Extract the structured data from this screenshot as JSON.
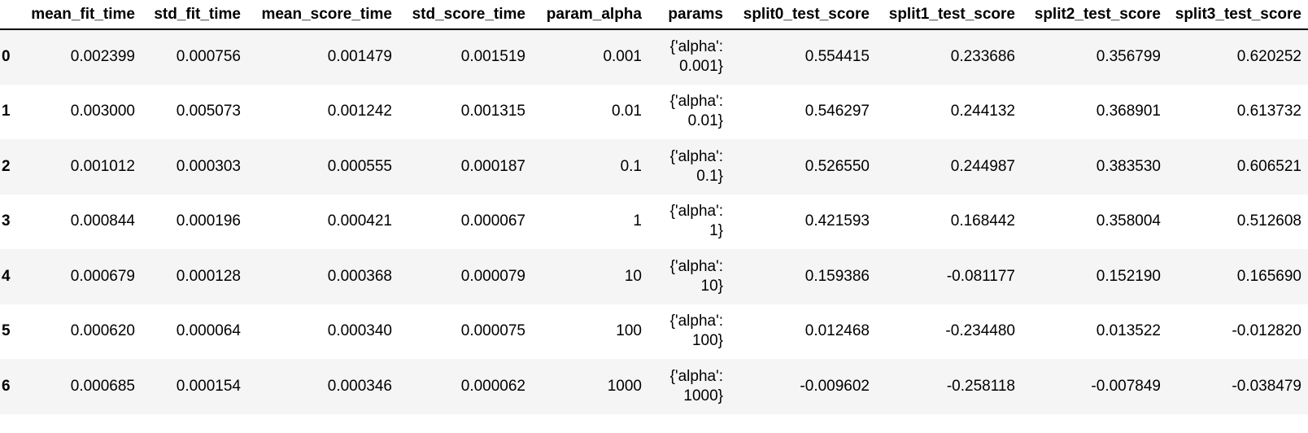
{
  "table": {
    "columns": [
      "mean_fit_time",
      "std_fit_time",
      "mean_score_time",
      "std_score_time",
      "param_alpha",
      "params",
      "split0_test_score",
      "split1_test_score",
      "split2_test_score",
      "split3_test_score"
    ],
    "rows": [
      {
        "index": "0",
        "mean_fit_time": "0.002399",
        "std_fit_time": "0.000756",
        "mean_score_time": "0.001479",
        "std_score_time": "0.001519",
        "param_alpha": "0.001",
        "params_line1": "{'alpha':",
        "params_line2": "0.001}",
        "split0_test_score": "0.554415",
        "split1_test_score": "0.233686",
        "split2_test_score": "0.356799",
        "split3_test_score": "0.620252"
      },
      {
        "index": "1",
        "mean_fit_time": "0.003000",
        "std_fit_time": "0.005073",
        "mean_score_time": "0.001242",
        "std_score_time": "0.001315",
        "param_alpha": "0.01",
        "params_line1": "{'alpha':",
        "params_line2": "0.01}",
        "split0_test_score": "0.546297",
        "split1_test_score": "0.244132",
        "split2_test_score": "0.368901",
        "split3_test_score": "0.613732"
      },
      {
        "index": "2",
        "mean_fit_time": "0.001012",
        "std_fit_time": "0.000303",
        "mean_score_time": "0.000555",
        "std_score_time": "0.000187",
        "param_alpha": "0.1",
        "params_line1": "{'alpha':",
        "params_line2": "0.1}",
        "split0_test_score": "0.526550",
        "split1_test_score": "0.244987",
        "split2_test_score": "0.383530",
        "split3_test_score": "0.606521"
      },
      {
        "index": "3",
        "mean_fit_time": "0.000844",
        "std_fit_time": "0.000196",
        "mean_score_time": "0.000421",
        "std_score_time": "0.000067",
        "param_alpha": "1",
        "params_line1": "{'alpha':",
        "params_line2": "1}",
        "split0_test_score": "0.421593",
        "split1_test_score": "0.168442",
        "split2_test_score": "0.358004",
        "split3_test_score": "0.512608"
      },
      {
        "index": "4",
        "mean_fit_time": "0.000679",
        "std_fit_time": "0.000128",
        "mean_score_time": "0.000368",
        "std_score_time": "0.000079",
        "param_alpha": "10",
        "params_line1": "{'alpha':",
        "params_line2": "10}",
        "split0_test_score": "0.159386",
        "split1_test_score": "-0.081177",
        "split2_test_score": "0.152190",
        "split3_test_score": "0.165690"
      },
      {
        "index": "5",
        "mean_fit_time": "0.000620",
        "std_fit_time": "0.000064",
        "mean_score_time": "0.000340",
        "std_score_time": "0.000075",
        "param_alpha": "100",
        "params_line1": "{'alpha':",
        "params_line2": "100}",
        "split0_test_score": "0.012468",
        "split1_test_score": "-0.234480",
        "split2_test_score": "0.013522",
        "split3_test_score": "-0.012820"
      },
      {
        "index": "6",
        "mean_fit_time": "0.000685",
        "std_fit_time": "0.000154",
        "mean_score_time": "0.000346",
        "std_score_time": "0.000062",
        "param_alpha": "1000",
        "params_line1": "{'alpha':",
        "params_line2": "1000}",
        "split0_test_score": "-0.009602",
        "split1_test_score": "-0.258118",
        "split2_test_score": "-0.007849",
        "split3_test_score": "-0.038479"
      }
    ]
  },
  "colors": {
    "striped_row": "#f5f5f5",
    "plain_row": "#ffffff",
    "header_rule": "#000000"
  }
}
